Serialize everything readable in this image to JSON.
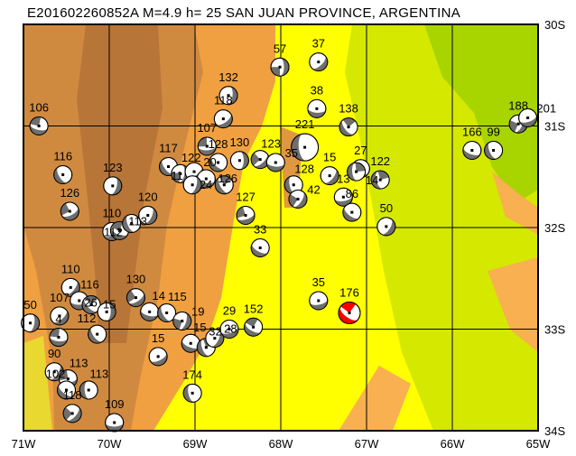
{
  "title": "E201602260852A M=4.9 h= 25 SAN JUAN PROVINCE, ARGENTINA",
  "map": {
    "lon_range": [
      -71,
      -65
    ],
    "lat_range": [
      -34,
      -30
    ],
    "grid": true,
    "lon_ticks": [
      "71W",
      "70W",
      "69W",
      "68W",
      "67W",
      "66W",
      "65W"
    ],
    "lat_ticks": [
      "30S",
      "31S",
      "32S",
      "33S",
      "34S"
    ],
    "colors": {
      "highlight_event": "#ff0000",
      "mechanism_fill": "#6e6e6e",
      "lowland": "#ffff00",
      "plain": "#d4e800",
      "foothills": "#f0a040",
      "mountains": "#c07a38"
    }
  },
  "events": [
    {
      "label": "57",
      "lon": -68.01,
      "lat": -30.42
    },
    {
      "label": "37",
      "lon": -67.56,
      "lat": -30.37
    },
    {
      "label": "38",
      "lon": -67.58,
      "lat": -30.83
    },
    {
      "label": "138",
      "lon": -67.21,
      "lat": -31.01
    },
    {
      "label": "132",
      "lon": -68.61,
      "lat": -30.7
    },
    {
      "label": "118",
      "lon": -68.67,
      "lat": -30.93
    },
    {
      "label": "106",
      "lon": -70.82,
      "lat": -31.0
    },
    {
      "label": "116",
      "lon": -70.54,
      "lat": -31.48
    },
    {
      "label": "123",
      "lon": -69.96,
      "lat": -31.59
    },
    {
      "label": "126",
      "lon": -70.46,
      "lat": -31.84
    },
    {
      "label": "166",
      "lon": -65.77,
      "lat": -31.24
    },
    {
      "label": "99",
      "lon": -65.52,
      "lat": -31.24
    },
    {
      "label": "188",
      "lon": -65.23,
      "lat": -30.98
    },
    {
      "label": "201",
      "lon": -65.12,
      "lat": -30.92
    },
    {
      "label": "27",
      "lon": -67.07,
      "lat": -31.42
    },
    {
      "label": "122",
      "lon": -66.84,
      "lat": -31.53
    },
    {
      "label": "50",
      "lon": -66.77,
      "lat": -31.99
    },
    {
      "label": "35",
      "lon": -67.56,
      "lat": -32.72
    },
    {
      "label": "176",
      "lon": -67.2,
      "lat": -32.84,
      "highlight": true
    },
    {
      "label": "221",
      "lon": -67.72,
      "lat": -31.21,
      "large": true
    },
    {
      "label": "15",
      "lon": -67.43,
      "lat": -31.49
    },
    {
      "label": "107",
      "lon": -68.86,
      "lat": -31.2
    },
    {
      "label": "128",
      "lon": -68.73,
      "lat": -31.36
    },
    {
      "label": "130",
      "lon": -68.48,
      "lat": -31.34
    },
    {
      "label": "123",
      "lon": -68.24,
      "lat": -31.33
    },
    {
      "label": "35",
      "lon": -68.06,
      "lat": -31.36
    },
    {
      "label": "117",
      "lon": -69.31,
      "lat": -31.4
    },
    {
      "label": "122",
      "lon": -69.17,
      "lat": -31.47
    },
    {
      "label": "20",
      "lon": -69.01,
      "lat": -31.45
    },
    {
      "label": "126",
      "lon": -68.87,
      "lat": -31.52
    },
    {
      "label": "24",
      "lon": -68.66,
      "lat": -31.58
    },
    {
      "label": "11",
      "lon": -69.03,
      "lat": -31.58
    },
    {
      "label": "110",
      "lon": -69.97,
      "lat": -32.04
    },
    {
      "label": "113",
      "lon": -69.88,
      "lat": -32.03
    },
    {
      "label": "112",
      "lon": -69.74,
      "lat": -31.96
    },
    {
      "label": "120",
      "lon": -69.55,
      "lat": -31.88
    },
    {
      "label": "127",
      "lon": -68.41,
      "lat": -31.88
    },
    {
      "label": "33",
      "lon": -68.24,
      "lat": -32.2
    },
    {
      "label": "128",
      "lon": -67.85,
      "lat": -31.58
    },
    {
      "label": "42",
      "lon": -67.8,
      "lat": -31.72
    },
    {
      "label": "13",
      "lon": -67.27,
      "lat": -31.7
    },
    {
      "label": "86",
      "lon": -67.17,
      "lat": -31.85
    },
    {
      "label": "14",
      "lon": -67.12,
      "lat": -31.45
    },
    {
      "label": "110",
      "lon": -70.45,
      "lat": -32.59
    },
    {
      "label": "116",
      "lon": -70.35,
      "lat": -32.72
    },
    {
      "label": "15",
      "lon": -70.21,
      "lat": -32.76
    },
    {
      "label": "26",
      "lon": -70.03,
      "lat": -32.83
    },
    {
      "label": "107",
      "lon": -70.58,
      "lat": -32.87
    },
    {
      "label": "4",
      "lon": -70.59,
      "lat": -33.08
    },
    {
      "label": "112",
      "lon": -70.14,
      "lat": -33.05
    },
    {
      "label": "50",
      "lon": -70.92,
      "lat": -32.94
    },
    {
      "label": "130",
      "lon": -69.69,
      "lat": -32.69
    },
    {
      "label": "14",
      "lon": -69.53,
      "lat": -32.83
    },
    {
      "label": "115",
      "lon": -69.33,
      "lat": -32.84
    },
    {
      "label": "19",
      "lon": -69.15,
      "lat": -32.92
    },
    {
      "label": "15",
      "lon": -69.43,
      "lat": -33.27
    },
    {
      "label": "15",
      "lon": -69.05,
      "lat": -33.14
    },
    {
      "label": "32",
      "lon": -68.87,
      "lat": -33.18
    },
    {
      "label": "28",
      "lon": -68.77,
      "lat": -33.09
    },
    {
      "label": "29",
      "lon": -68.6,
      "lat": -33.0
    },
    {
      "label": "152",
      "lon": -68.32,
      "lat": -32.98
    },
    {
      "label": "174",
      "lon": -69.03,
      "lat": -33.63
    },
    {
      "label": "90",
      "lon": -70.64,
      "lat": -33.42
    },
    {
      "label": "113",
      "lon": -70.48,
      "lat": -33.49
    },
    {
      "label": "102",
      "lon": -70.5,
      "lat": -33.6
    },
    {
      "label": "113",
      "lon": -70.24,
      "lat": -33.6
    },
    {
      "label": "118",
      "lon": -70.43,
      "lat": -33.83
    },
    {
      "label": "109",
      "lon": -69.94,
      "lat": -33.92
    }
  ]
}
